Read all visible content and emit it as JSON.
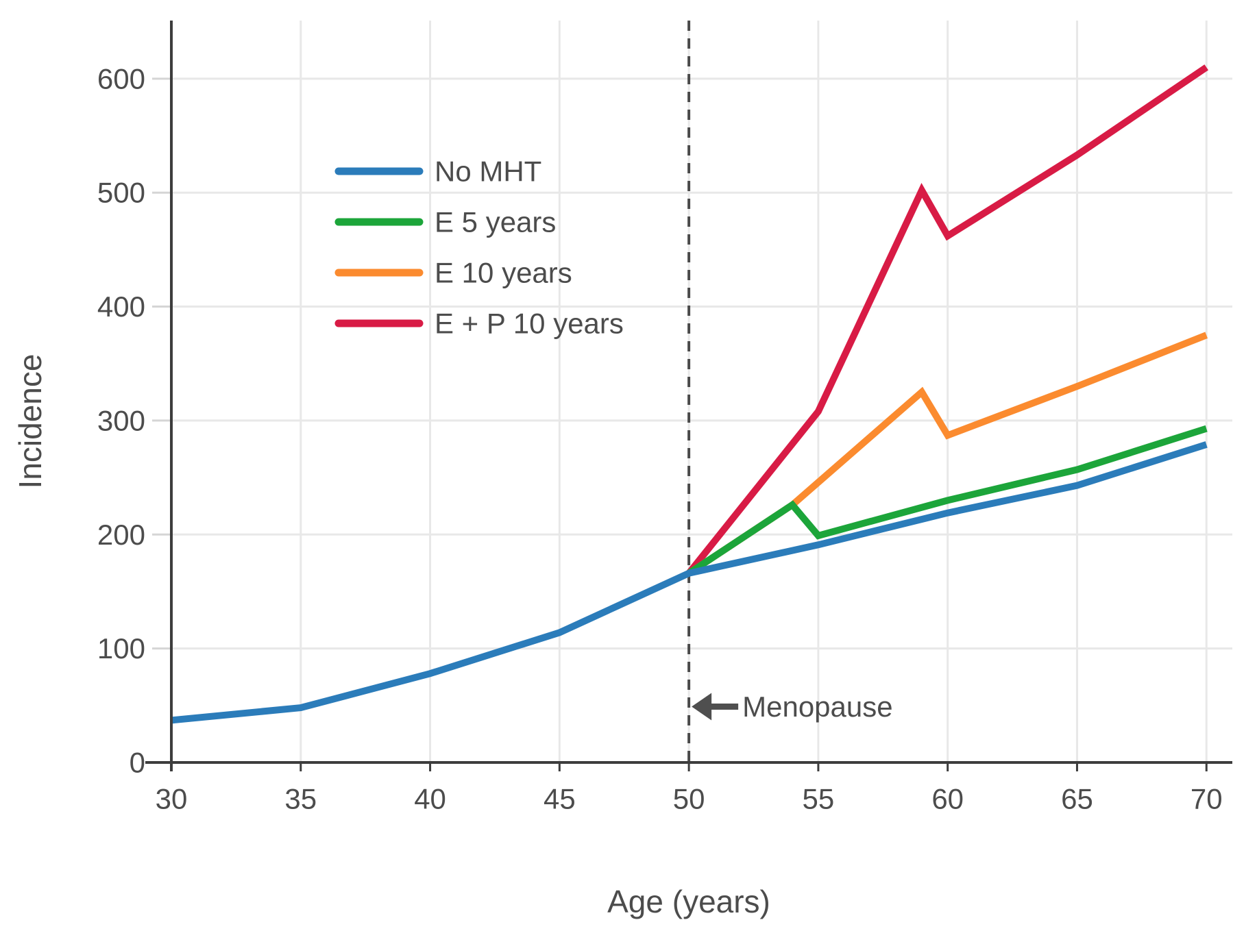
{
  "chart_data": {
    "type": "line",
    "title": "",
    "xlabel": "Age (years)",
    "ylabel": "Incidence",
    "xlim": [
      30,
      71
    ],
    "ylim": [
      0,
      651
    ],
    "x_ticks": [
      30,
      35,
      40,
      45,
      50,
      55,
      60,
      65,
      70
    ],
    "y_ticks": [
      0,
      100,
      200,
      300,
      400,
      500,
      600
    ],
    "grid": true,
    "legend_position": "inside-upper-left",
    "series": [
      {
        "name": "No MHT",
        "color": "#2b7cba",
        "points": [
          [
            30,
            37
          ],
          [
            35,
            48
          ],
          [
            40,
            78
          ],
          [
            45,
            114
          ],
          [
            50,
            166
          ],
          [
            55,
            191
          ],
          [
            60,
            219
          ],
          [
            65,
            243
          ],
          [
            70,
            279
          ]
        ]
      },
      {
        "name": "E 5 years",
        "color": "#1ca53a",
        "points": [
          [
            50,
            166
          ],
          [
            54,
            226
          ],
          [
            55,
            199
          ],
          [
            60,
            230
          ],
          [
            65,
            257
          ],
          [
            70,
            293
          ]
        ]
      },
      {
        "name": "E 10 years",
        "color": "#fb8b2f",
        "points": [
          [
            50,
            166
          ],
          [
            54,
            226
          ],
          [
            59,
            325
          ],
          [
            60,
            287
          ],
          [
            65,
            330
          ],
          [
            70,
            375
          ]
        ]
      },
      {
        "name": "E + P 10 years",
        "color": "#d81b45",
        "points": [
          [
            50,
            166
          ],
          [
            55,
            308
          ],
          [
            59,
            502
          ],
          [
            60,
            462
          ],
          [
            65,
            533
          ],
          [
            70,
            610
          ]
        ]
      }
    ],
    "annotations": {
      "vline": {
        "x": 50,
        "style": "dashed",
        "color": "#4a4a4a"
      },
      "arrow_label": {
        "text": "Menopause",
        "x": 50,
        "y": 49,
        "direction": "left"
      }
    }
  }
}
